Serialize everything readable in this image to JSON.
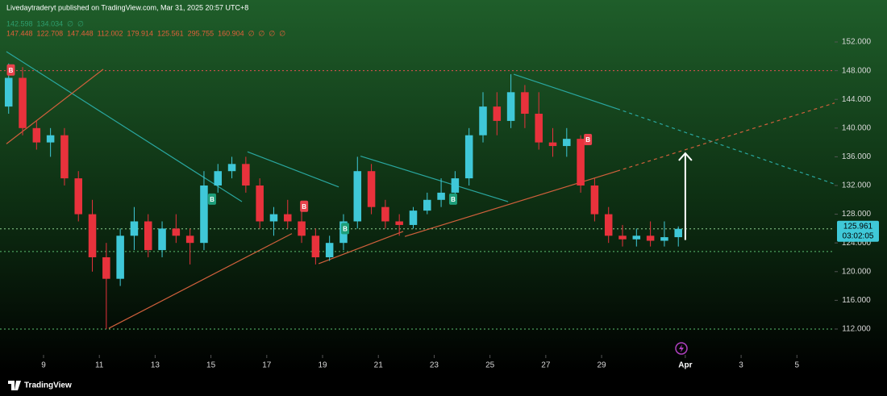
{
  "chart_data": {
    "type": "candlestick",
    "title": "Livedaytraderyt published on TradingView.com, Mar 31, 2025 20:57 UTC+8",
    "legend_rows": [
      {
        "color": "#2e9e6e",
        "items": [
          142.598,
          134.034,
          "∅",
          "∅"
        ]
      },
      {
        "color": "#e0603a",
        "items": [
          147.448,
          122.708,
          147.448,
          112.002,
          179.914,
          125.561,
          295.755,
          160.904,
          "∅",
          "∅",
          "∅",
          "∅"
        ]
      }
    ],
    "x": [
      7.75,
      8.25,
      8.75,
      9.25,
      9.75,
      10.25,
      10.75,
      11.25,
      11.75,
      12.25,
      12.75,
      13.25,
      13.75,
      14.25,
      14.75,
      15.25,
      15.75,
      16.25,
      16.75,
      17.25,
      17.75,
      18.25,
      18.75,
      19.25,
      19.75,
      20.25,
      20.75,
      21.25,
      21.75,
      22.25,
      22.75,
      23.25,
      23.75,
      24.25,
      24.75,
      25.25,
      25.75,
      26.25,
      26.75,
      27.25,
      27.75,
      28.25,
      28.75,
      29.25,
      29.75,
      30.25,
      30.75,
      31.25,
      31.75
    ],
    "open": [
      143,
      147,
      140,
      138,
      139,
      133,
      128,
      122,
      119,
      125,
      127,
      123,
      126,
      125,
      124,
      132,
      134,
      135,
      132,
      127,
      128,
      127,
      125,
      122,
      124,
      127,
      134,
      129,
      127,
      126.5,
      128.5,
      130,
      131,
      133,
      139,
      143,
      141,
      145,
      142,
      138,
      137.5,
      138.5,
      132,
      128,
      125,
      124.5,
      125,
      124.3,
      124.8
    ],
    "high": [
      149,
      148.5,
      141,
      140,
      140,
      134,
      130,
      124,
      126,
      129,
      128,
      127,
      128,
      126,
      134,
      135,
      136,
      136,
      133,
      129,
      130,
      129,
      126,
      125,
      128,
      136,
      135,
      130,
      128,
      129,
      131,
      133,
      134,
      140,
      145,
      145,
      147.5,
      146,
      145,
      140,
      140,
      139,
      133,
      129,
      126.5,
      126,
      127,
      127,
      126.3
    ],
    "low": [
      142,
      139,
      137,
      136,
      132,
      127,
      120,
      112,
      118,
      123,
      122,
      122,
      124,
      121,
      123,
      131,
      133,
      131,
      126,
      125,
      126,
      124,
      121,
      121.5,
      123,
      126,
      128,
      126,
      125,
      126,
      128,
      129,
      130,
      132,
      138,
      139,
      140,
      140,
      137,
      136,
      136,
      131,
      127,
      124,
      123.5,
      123.5,
      123.5,
      123.5,
      123.5
    ],
    "close": [
      147,
      140,
      138,
      139,
      133,
      128,
      122,
      119,
      125,
      127,
      123,
      126,
      125,
      124,
      132,
      134,
      135,
      132,
      127,
      128,
      127,
      125,
      122,
      124,
      127,
      134,
      129,
      127,
      126.5,
      128.5,
      130,
      131,
      133,
      139,
      143,
      141,
      145,
      142,
      138,
      137.5,
      138.5,
      132,
      128,
      125,
      124.5,
      125,
      124.3,
      124.8,
      125.961
    ],
    "up_color": "#3fc8d8",
    "down_color": "#e8323c",
    "xlim": [
      7.44,
      37.35
    ],
    "xticks": [
      9,
      11,
      13,
      15,
      17,
      19,
      21,
      23,
      25,
      27,
      29,
      {
        "value": 32,
        "label": "Apr"
      },
      {
        "value": 34,
        "label": "3"
      },
      {
        "value": 36,
        "label": "5"
      }
    ],
    "ylim": [
      108.4,
      155.6
    ],
    "yticks": [
      {
        "value": 112,
        "label": "112.000"
      },
      {
        "value": 116,
        "label": "116.000"
      },
      {
        "value": 120,
        "label": "120.000"
      },
      {
        "value": 124,
        "label": "124.000"
      },
      {
        "value": 128,
        "label": "128.000"
      },
      {
        "value": 132,
        "label": "132.000"
      },
      {
        "value": 136,
        "label": "136.000"
      },
      {
        "value": 140,
        "label": "140.000"
      },
      {
        "value": 144,
        "label": "144.000"
      },
      {
        "value": 148,
        "label": "148.000"
      },
      {
        "value": 152,
        "label": "152.000"
      }
    ],
    "last_price": 125.961,
    "countdown": "03:02:05",
    "price_color": "#3fc8d8",
    "levels": [
      {
        "value": 148,
        "color": "#e05050"
      },
      {
        "value": 122.8,
        "color": "#5cc070"
      },
      {
        "value": 112,
        "color": "#5cc070"
      }
    ],
    "lines": [
      {
        "x": [
          7.67,
          16.11
        ],
        "y": [
          150.65,
          129.75
        ],
        "color": "#2aa7a0",
        "dash": false
      },
      {
        "x": [
          7.67,
          11.14
        ],
        "y": [
          137.8,
          148.2
        ],
        "color": "#d0603c",
        "dash": false
      },
      {
        "x": [
          11.34,
          17.9
        ],
        "y": [
          112.1,
          125.3
        ],
        "color": "#d0603c",
        "dash": false
      },
      {
        "x": [
          18.86,
          21.89
        ],
        "y": [
          121.1,
          125.6
        ],
        "color": "#d0603c",
        "dash": false
      },
      {
        "x": [
          21.95,
          29.55
        ],
        "y": [
          124.9,
          134.0
        ],
        "color": "#d0603c",
        "dash": false
      },
      {
        "x": [
          29.55,
          37.35
        ],
        "y": [
          134.0,
          143.5
        ],
        "color": "#d0603c",
        "dash": true
      },
      {
        "x": [
          16.31,
          19.58
        ],
        "y": [
          136.7,
          131.8
        ],
        "color": "#2aa7a0",
        "dash": false
      },
      {
        "x": [
          20.36,
          25.65
        ],
        "y": [
          136.1,
          129.75
        ],
        "color": "#2aa7a0",
        "dash": false
      },
      {
        "x": [
          25.85,
          29.55
        ],
        "y": [
          147.5,
          142.7
        ],
        "color": "#2aa7a0",
        "dash": false
      },
      {
        "x": [
          29.55,
          37.35
        ],
        "y": [
          142.7,
          132.2
        ],
        "color": "#2aa7a0",
        "dash": true
      }
    ],
    "markers": [
      {
        "x": 7.83,
        "price": 148.1,
        "label": "B",
        "color": "#e8424c"
      },
      {
        "x": 15.04,
        "price": 130.1,
        "label": "B",
        "color": "#1e9e7a"
      },
      {
        "x": 18.34,
        "price": 129.1,
        "label": "B",
        "color": "#e8424c"
      },
      {
        "x": 19.81,
        "price": 126.0,
        "label": "B",
        "color": "#1e9e7a"
      },
      {
        "x": 23.68,
        "price": 130.1,
        "label": "B",
        "color": "#1e9e7a"
      },
      {
        "x": 28.51,
        "price": 138.4,
        "label": "B",
        "color": "#e8424c"
      }
    ],
    "arrow": {
      "x": 32.0,
      "from": 124.4,
      "to": 136.5
    },
    "brand": "TradingView"
  }
}
